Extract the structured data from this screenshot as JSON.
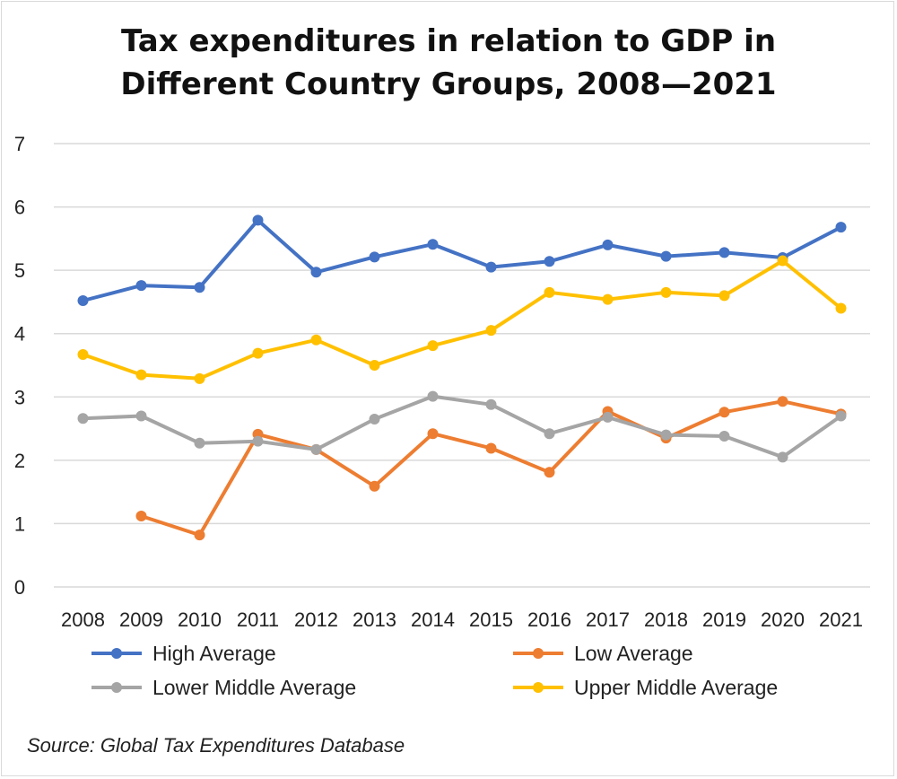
{
  "chart_data": {
    "type": "line",
    "title_line1": "Tax expenditures in relation to GDP in",
    "title_line2": "Different Country Groups, 2008—2021",
    "categories": [
      "2008",
      "2009",
      "2010",
      "2011",
      "2012",
      "2013",
      "2014",
      "2015",
      "2016",
      "2017",
      "2018",
      "2019",
      "2020",
      "2021"
    ],
    "yticks": [
      "0",
      "1",
      "2",
      "3",
      "4",
      "5",
      "6",
      "7"
    ],
    "ylim": [
      0,
      7
    ],
    "grid": true,
    "legend_position": "bottom",
    "series": [
      {
        "name": "High Average",
        "color": "#4472C4",
        "values": [
          4.52,
          4.76,
          4.73,
          5.79,
          4.97,
          5.21,
          5.41,
          5.05,
          5.14,
          5.4,
          5.22,
          5.28,
          5.2,
          5.68
        ]
      },
      {
        "name": "Low Average",
        "color": "#ED7D31",
        "values": [
          null,
          1.12,
          0.82,
          2.41,
          2.17,
          1.59,
          2.42,
          2.19,
          1.81,
          2.77,
          2.35,
          2.76,
          2.93,
          2.73
        ]
      },
      {
        "name": "Lower Middle Average",
        "color": "#A5A5A5",
        "values": [
          2.66,
          2.7,
          2.27,
          2.3,
          2.17,
          2.65,
          3.01,
          2.88,
          2.42,
          2.68,
          2.4,
          2.38,
          2.05,
          2.7
        ]
      },
      {
        "name": "Upper Middle Average",
        "color": "#FFC000",
        "values": [
          3.67,
          3.35,
          3.29,
          3.69,
          3.9,
          3.5,
          3.81,
          4.05,
          4.65,
          4.54,
          4.65,
          4.6,
          5.15,
          4.4
        ]
      }
    ],
    "source": "Source: Global Tax Expenditures Database"
  }
}
